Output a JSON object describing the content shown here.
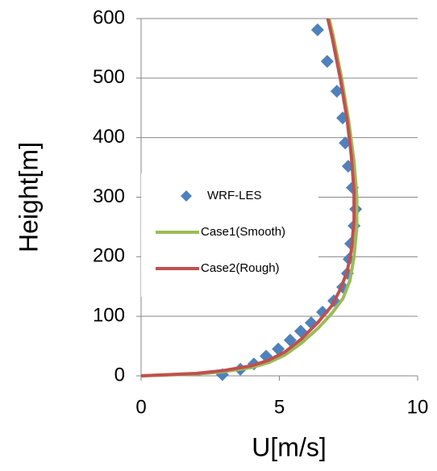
{
  "chart_data": {
    "type": "scatter",
    "xlabel": "U[m/s]",
    "ylabel": "Height[m]",
    "xlim": [
      0,
      10
    ],
    "xticks": [
      0,
      5,
      10
    ],
    "ylim": [
      0,
      600
    ],
    "yticks": [
      0,
      100,
      200,
      300,
      400,
      500,
      600
    ],
    "grid": "y",
    "legend": "left",
    "series": [
      {
        "name": "WRF-LES",
        "mode": "markers",
        "color": "#4f81bd",
        "x": [
          2.94,
          3.59,
          4.08,
          4.52,
          4.96,
          5.39,
          5.77,
          6.15,
          6.56,
          6.97,
          7.29,
          7.46,
          7.52,
          7.58,
          7.7,
          7.76,
          7.64,
          7.49,
          7.38,
          7.29,
          7.08,
          6.73,
          6.38
        ],
        "values": [
          2,
          11,
          20,
          33,
          45,
          60,
          75,
          89,
          107,
          126,
          149,
          172,
          196,
          222,
          252,
          280,
          316,
          352,
          391,
          433,
          478,
          528,
          581
        ]
      },
      {
        "name": "Case1(Smooth)",
        "mode": "lines",
        "color": "#9bbb59",
        "x": [
          0,
          2,
          3,
          4,
          4.6,
          5.2,
          5.8,
          6.4,
          6.9,
          7.3,
          7.55,
          7.7,
          7.8,
          7.8,
          7.7,
          7.5,
          7.25,
          6.95,
          6.8
        ],
        "values": [
          0,
          3,
          7,
          14,
          22,
          35,
          55,
          80,
          105,
          130,
          160,
          200,
          250,
          300,
          360,
          430,
          500,
          570,
          600
        ]
      },
      {
        "name": "Case2(Rough)",
        "mode": "lines",
        "color": "#c0504d",
        "x": [
          0,
          2,
          3,
          4,
          4.6,
          5.2,
          5.8,
          6.4,
          6.9,
          7.2,
          7.45,
          7.6,
          7.7,
          7.7,
          7.6,
          7.45,
          7.2,
          6.9,
          6.75
        ],
        "values": [
          0,
          4,
          9,
          17,
          26,
          40,
          62,
          90,
          118,
          145,
          175,
          210,
          260,
          310,
          370,
          430,
          500,
          570,
          600
        ]
      }
    ]
  }
}
